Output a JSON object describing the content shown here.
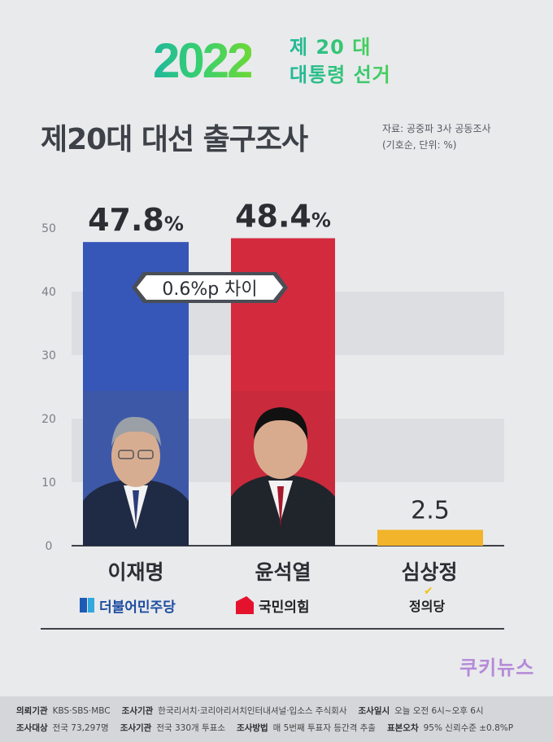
{
  "logo": {
    "year": "2022",
    "line1": "제 20 대",
    "line2": "대통령 선거"
  },
  "title": "제20대 대선 출구조사",
  "source": {
    "line1": "자료: 공중파 3사 공동조사",
    "line2": "(기호순, 단위: %)"
  },
  "gap_label": "0.6%p 차이",
  "chart_data": {
    "type": "bar",
    "categories": [
      "이재명",
      "윤석열",
      "심상정"
    ],
    "values": [
      47.8,
      48.4,
      2.5
    ],
    "value_labels": [
      "47.8%",
      "48.4%",
      "2.5"
    ],
    "colors": [
      "#3656b8",
      "#d42a3e",
      "#f2b42a"
    ],
    "yticks": [
      0,
      10,
      20,
      30,
      40,
      50
    ],
    "ylim": [
      0,
      50
    ],
    "grid": true
  },
  "parties": {
    "dem": "더불어민주당",
    "ppp": "국민의힘",
    "justice": "정의당"
  },
  "brand": "쿠키뉴스",
  "footer": {
    "row1": [
      {
        "k": "의뢰기관",
        "v": "KBS·SBS·MBC"
      },
      {
        "k": "조사기관",
        "v": "한국리서치·코리아리서치인터내셔널·입소스 주식회사"
      },
      {
        "k": "조사일시",
        "v": "오늘 오전 6시~오후 6시"
      }
    ],
    "row2": [
      {
        "k": "조사대상",
        "v": "전국 73,297명"
      },
      {
        "k": "조사기관",
        "v": "전국 330개 투표소"
      },
      {
        "k": "조사방법",
        "v": "매 5번째 투표자 등간격 추출"
      },
      {
        "k": "표본오차",
        "v": "95% 신뢰수준 ±0.8%P"
      }
    ]
  }
}
